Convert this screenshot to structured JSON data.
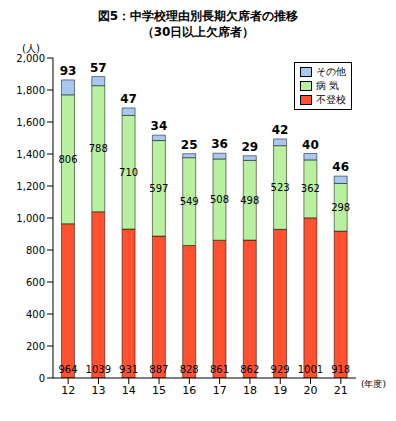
{
  "chart_data": {
    "type": "bar",
    "title": "図5：中学校理由別長期欠席者の推移",
    "subtitle": "（30日以上欠席者）",
    "ylabel": "(人)",
    "xlabel": "(年度)",
    "categories": [
      "12",
      "13",
      "14",
      "15",
      "16",
      "17",
      "18",
      "19",
      "20",
      "21"
    ],
    "series": [
      {
        "name": "不登校",
        "color": "#ff5030",
        "values": [
          964,
          1039,
          931,
          887,
          828,
          861,
          862,
          929,
          1001,
          918
        ]
      },
      {
        "name": "病 気",
        "color": "#b8f0a0",
        "values": [
          806,
          788,
          710,
          597,
          549,
          508,
          498,
          523,
          362,
          298
        ]
      },
      {
        "name": "その他",
        "color": "#a8c8f0",
        "values": [
          93,
          57,
          47,
          34,
          25,
          36,
          29,
          42,
          40,
          46
        ]
      }
    ],
    "stacked": true,
    "data_labels": true,
    "legend": "upper right",
    "grid": false,
    "ylim": [
      0,
      2000
    ],
    "yticks": [
      {
        "value": 0,
        "label": "0"
      },
      {
        "value": 200,
        "label": "200"
      },
      {
        "value": 400,
        "label": "400"
      },
      {
        "value": 600,
        "label": "600"
      },
      {
        "value": 800,
        "label": "800"
      },
      {
        "value": 1000,
        "label": "1,000"
      },
      {
        "value": 1200,
        "label": "1,200"
      },
      {
        "value": 1400,
        "label": "1,400"
      },
      {
        "value": 1600,
        "label": "1,600"
      },
      {
        "value": 1800,
        "label": "1,800"
      },
      {
        "value": 2000,
        "label": "2,000"
      }
    ]
  }
}
